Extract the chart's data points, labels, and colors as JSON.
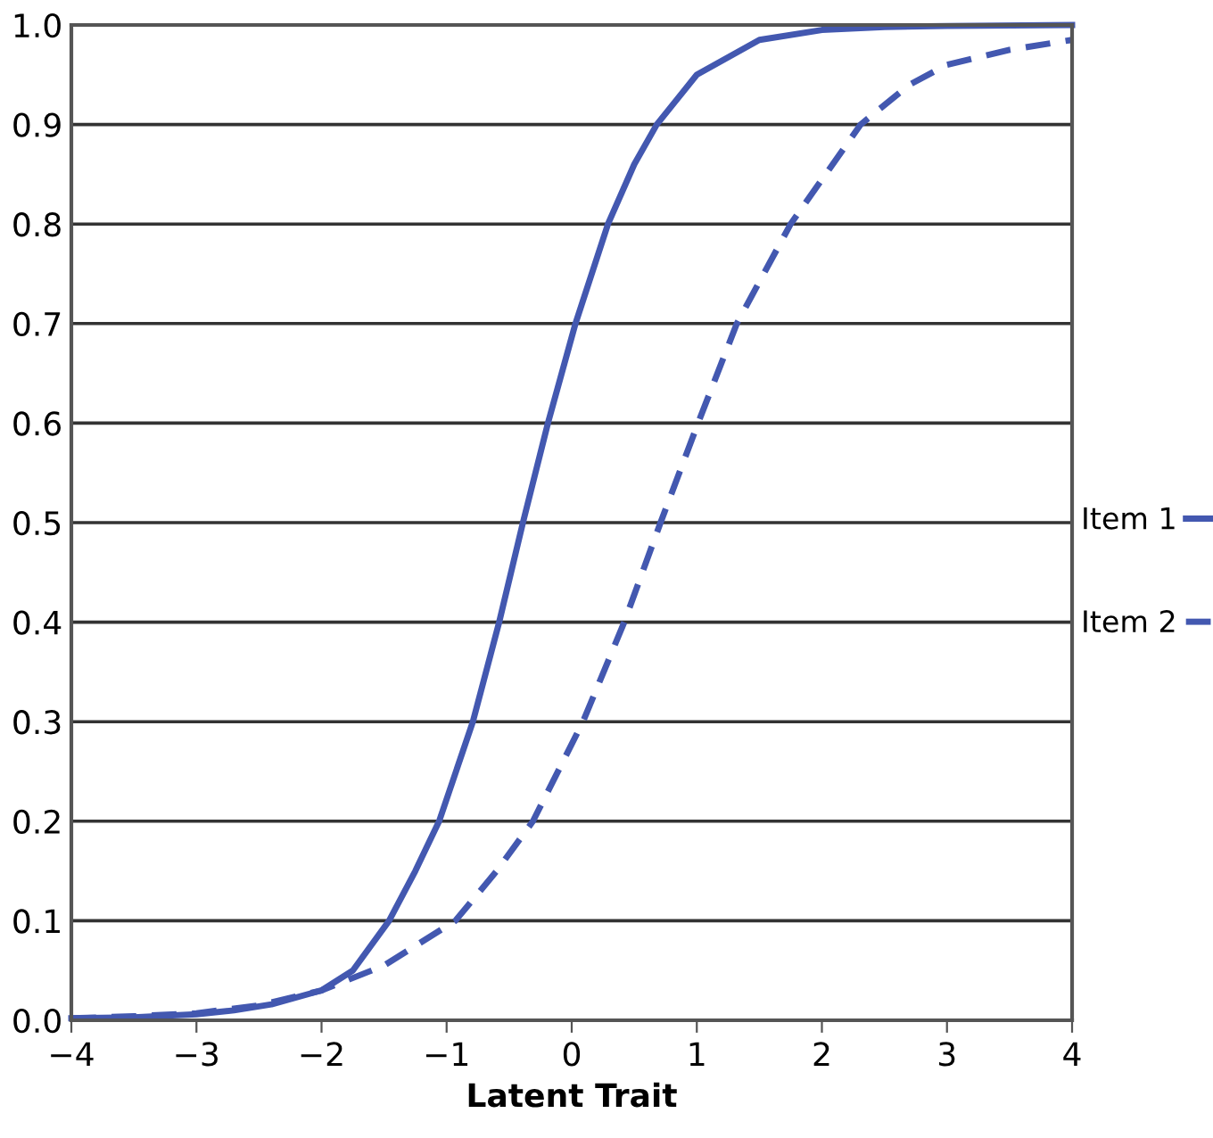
{
  "chart_data": {
    "type": "line",
    "xlabel": "Latent Trait",
    "xlim": [
      -4,
      4
    ],
    "xticks": [
      {
        "value": -4,
        "label": "−4"
      },
      {
        "value": -3,
        "label": "−3"
      },
      {
        "value": -2,
        "label": "−2"
      },
      {
        "value": -1,
        "label": "−1"
      },
      0,
      1,
      2,
      3,
      4
    ],
    "ylim": [
      0,
      1
    ],
    "yticks": [
      {
        "value": 0,
        "label": "0.0"
      },
      0.1,
      0.2,
      0.3,
      0.4,
      0.5,
      0.6,
      0.7,
      0.8,
      0.9,
      {
        "value": 1,
        "label": "1.0"
      }
    ],
    "grid": "y",
    "legend": "right",
    "marker": "none",
    "series": [
      {
        "name": "Item 1",
        "color": "#4358b0",
        "line_style": "solid",
        "x": [
          -4,
          -3.5,
          -3,
          -2.7,
          -2.4,
          -2,
          -1.75,
          -1.46,
          -1.25,
          -1.06,
          -0.79,
          -0.58,
          -0.39,
          -0.19,
          0.03,
          0.29,
          0.5,
          0.68,
          1,
          1.5,
          2,
          2.5,
          3,
          4
        ],
        "values": [
          0.002,
          0.003,
          0.006,
          0.01,
          0.016,
          0.03,
          0.05,
          0.1,
          0.15,
          0.2,
          0.3,
          0.4,
          0.5,
          0.6,
          0.7,
          0.8,
          0.86,
          0.9,
          0.95,
          0.985,
          0.995,
          0.998,
          0.999,
          1.0
        ]
      },
      {
        "name": "Item 2",
        "color": "#4358b0",
        "line_style": "dashed",
        "x": [
          -4,
          -3.5,
          -3,
          -2.5,
          -2,
          -1.5,
          -0.93,
          -0.6,
          -0.31,
          0.09,
          0.42,
          0.71,
          1.01,
          1.32,
          1.75,
          2.31,
          2.7,
          3,
          3.5,
          4
        ],
        "values": [
          0.002,
          0.004,
          0.007,
          0.015,
          0.03,
          0.055,
          0.1,
          0.15,
          0.2,
          0.3,
          0.4,
          0.5,
          0.6,
          0.7,
          0.8,
          0.9,
          0.94,
          0.96,
          0.975,
          0.985
        ]
      }
    ]
  }
}
